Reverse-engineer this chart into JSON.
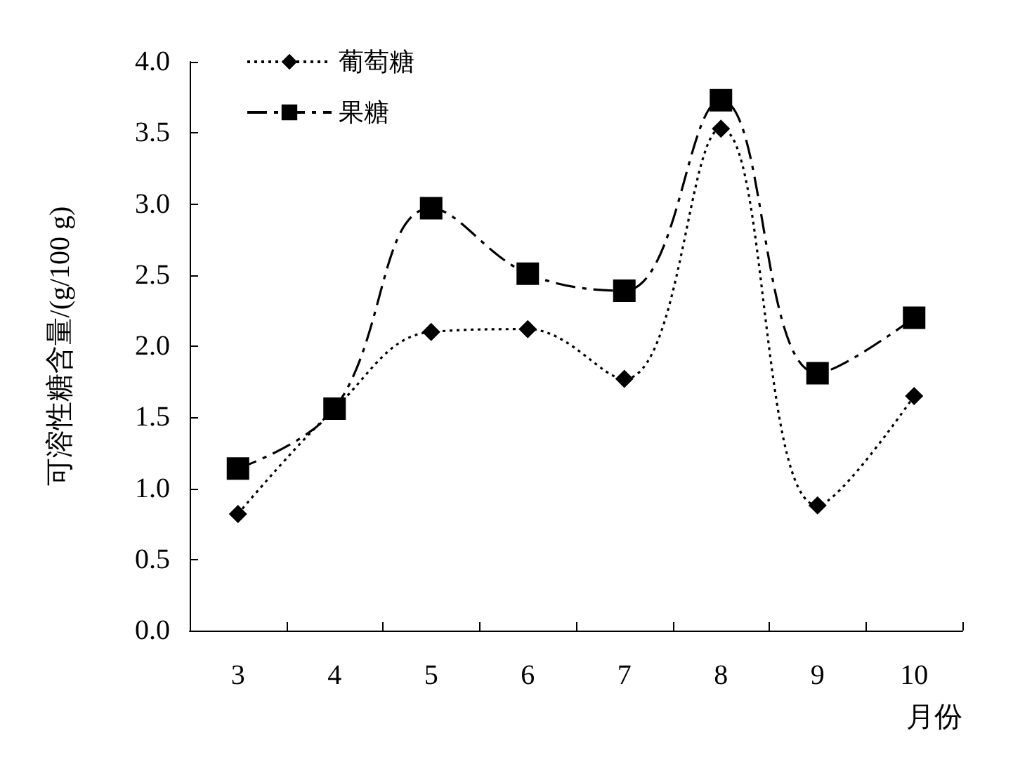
{
  "chart_data": {
    "type": "line",
    "xlabel": "月份",
    "ylabel": "可溶性糖含量/(g/100 g)",
    "categories": [
      "3",
      "4",
      "5",
      "6",
      "7",
      "8",
      "9",
      "10"
    ],
    "ylim": [
      0,
      4
    ],
    "yticks": [
      {
        "value": 0,
        "label": "0.0"
      },
      {
        "value": 0.5,
        "label": "0.5"
      },
      {
        "value": 1,
        "label": "1.0"
      },
      {
        "value": 1.5,
        "label": "1.5"
      },
      {
        "value": 2,
        "label": "2.0"
      },
      {
        "value": 2.5,
        "label": "2.5"
      },
      {
        "value": 3,
        "label": "3.0"
      },
      {
        "value": 3.5,
        "label": "3.5"
      },
      {
        "value": 4,
        "label": "4.0"
      }
    ],
    "series": [
      {
        "name": "葡萄糖",
        "color": "#000000",
        "marker": "diamond",
        "line_style": "dotted",
        "values": [
          0.82,
          1.56,
          2.1,
          2.12,
          1.77,
          3.53,
          0.88,
          1.65
        ]
      },
      {
        "name": "果糖",
        "color": "#000000",
        "marker": "square",
        "line_style": "dashed",
        "values": [
          1.14,
          1.56,
          2.97,
          2.51,
          2.39,
          3.73,
          1.81,
          2.2
        ]
      }
    ],
    "grid": false,
    "legend": "top left"
  }
}
